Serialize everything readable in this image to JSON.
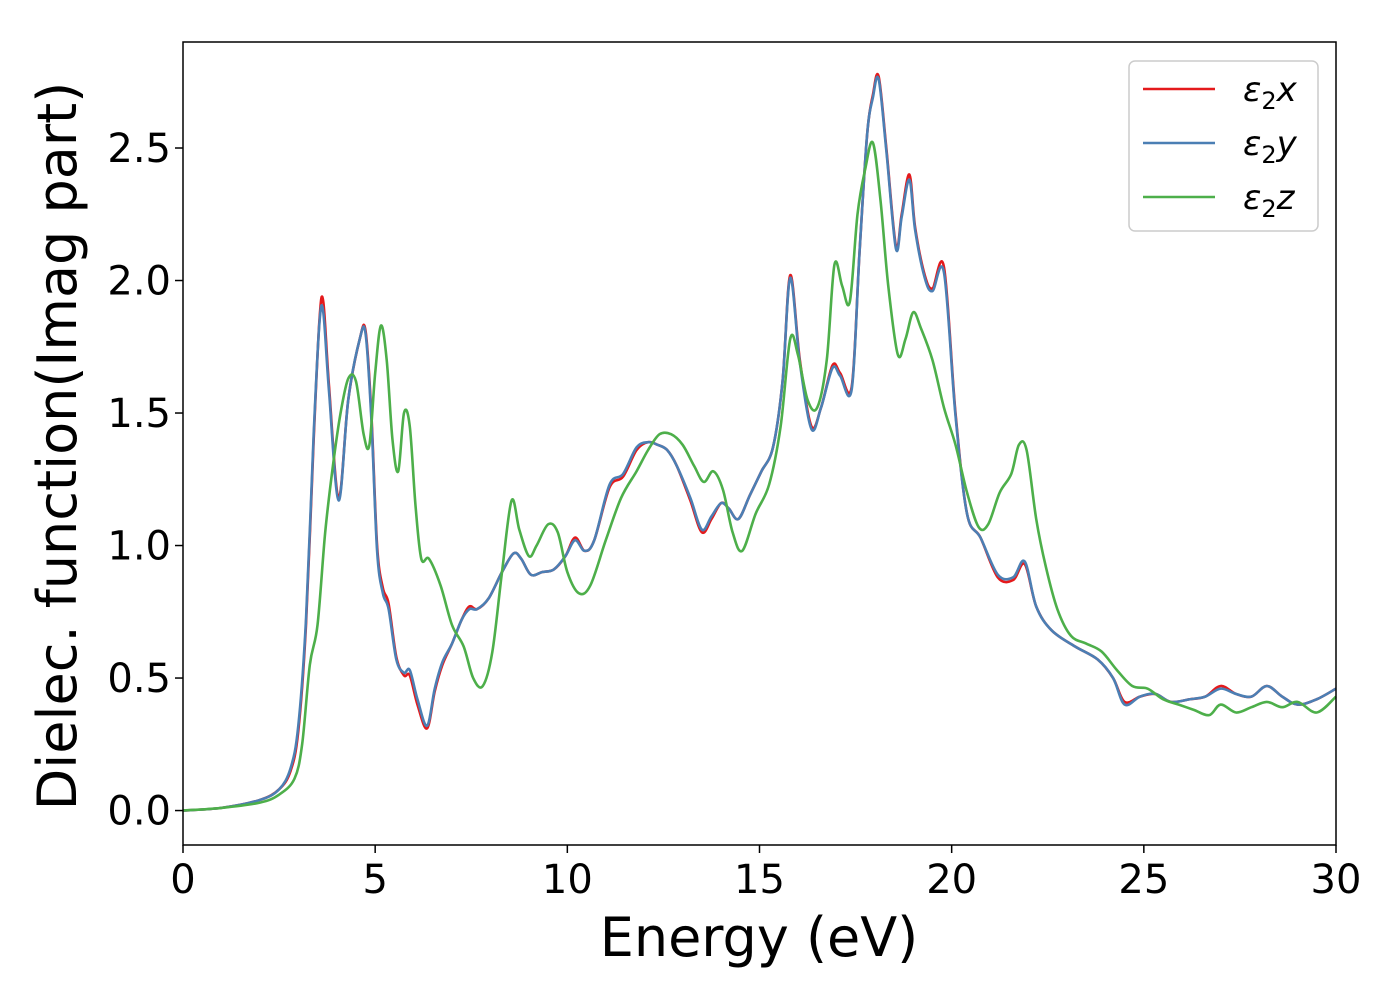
{
  "chart_data": {
    "type": "line",
    "title": "",
    "xlabel": "Energy (eV)",
    "ylabel": "Dielec. function(Imag part)",
    "xlim": [
      0,
      30
    ],
    "ylim": [
      -0.13,
      2.9
    ],
    "xticks": [
      0,
      5,
      10,
      15,
      20,
      25,
      30
    ],
    "xtick_labels": [
      "0",
      "5",
      "10",
      "15",
      "20",
      "25",
      "30"
    ],
    "yticks": [
      0.0,
      0.5,
      1.0,
      1.5,
      2.0,
      2.5
    ],
    "ytick_labels": [
      "0.0",
      "0.5",
      "1.0",
      "1.5",
      "2.0",
      "2.5"
    ],
    "grid": false,
    "legend_position": "top-right",
    "series": [
      {
        "name": "ε2x",
        "legend_sub": "2",
        "legend_base": "ε",
        "legend_suffix": "x",
        "color": "#e41a1c",
        "x": [
          0,
          1,
          2,
          2.5,
          2.8,
          3.0,
          3.2,
          3.4,
          3.55,
          3.65,
          3.8,
          4.05,
          4.3,
          4.6,
          4.75,
          4.9,
          5.05,
          5.2,
          5.35,
          5.55,
          5.75,
          5.9,
          6.1,
          6.35,
          6.55,
          6.75,
          7.0,
          7.25,
          7.45,
          7.65,
          7.95,
          8.3,
          8.6,
          8.8,
          9.05,
          9.35,
          9.65,
          9.95,
          10.2,
          10.45,
          10.7,
          11.1,
          11.45,
          11.8,
          12.1,
          12.35,
          12.6,
          12.85,
          13.2,
          13.5,
          13.75,
          14.0,
          14.2,
          14.45,
          14.75,
          15.05,
          15.35,
          15.6,
          15.8,
          16.05,
          16.35,
          16.6,
          16.9,
          17.1,
          17.4,
          17.6,
          17.8,
          17.95,
          18.1,
          18.3,
          18.55,
          18.7,
          18.9,
          19.05,
          19.3,
          19.5,
          19.8,
          20.1,
          20.4,
          20.75,
          21.2,
          21.6,
          21.9,
          22.2,
          22.6,
          23.2,
          23.8,
          24.2,
          24.5,
          24.9,
          25.3,
          25.7,
          26.2,
          26.6,
          27.0,
          27.4,
          27.8,
          28.2,
          28.6,
          29.0,
          29.5,
          30.0
        ],
        "values": [
          0.0,
          0.01,
          0.04,
          0.08,
          0.15,
          0.3,
          0.7,
          1.4,
          1.85,
          1.92,
          1.6,
          1.18,
          1.55,
          1.78,
          1.81,
          1.5,
          1.0,
          0.84,
          0.78,
          0.58,
          0.51,
          0.51,
          0.4,
          0.31,
          0.45,
          0.55,
          0.63,
          0.72,
          0.77,
          0.76,
          0.8,
          0.9,
          0.97,
          0.95,
          0.89,
          0.9,
          0.91,
          0.96,
          1.03,
          0.98,
          1.02,
          1.22,
          1.26,
          1.36,
          1.39,
          1.38,
          1.36,
          1.3,
          1.17,
          1.05,
          1.1,
          1.16,
          1.14,
          1.1,
          1.19,
          1.28,
          1.37,
          1.62,
          2.02,
          1.7,
          1.45,
          1.52,
          1.68,
          1.65,
          1.6,
          2.1,
          2.55,
          2.7,
          2.77,
          2.5,
          2.13,
          2.25,
          2.4,
          2.2,
          2.02,
          1.97,
          2.05,
          1.5,
          1.12,
          1.03,
          0.88,
          0.87,
          0.93,
          0.77,
          0.68,
          0.62,
          0.57,
          0.5,
          0.41,
          0.43,
          0.44,
          0.41,
          0.42,
          0.43,
          0.47,
          0.44,
          0.43,
          0.47,
          0.43,
          0.4,
          0.42,
          0.46
        ]
      },
      {
        "name": "ε2y",
        "legend_sub": "2",
        "legend_base": "ε",
        "legend_suffix": "y",
        "color": "#4b7fb4",
        "x": [
          0,
          1,
          2,
          2.5,
          2.8,
          3.0,
          3.2,
          3.4,
          3.55,
          3.65,
          3.8,
          4.05,
          4.3,
          4.6,
          4.75,
          4.9,
          5.05,
          5.2,
          5.35,
          5.55,
          5.75,
          5.9,
          6.1,
          6.35,
          6.55,
          6.75,
          7.0,
          7.25,
          7.45,
          7.65,
          7.95,
          8.3,
          8.6,
          8.8,
          9.05,
          9.35,
          9.65,
          9.95,
          10.2,
          10.45,
          10.7,
          11.1,
          11.45,
          11.8,
          12.1,
          12.35,
          12.6,
          12.85,
          13.2,
          13.5,
          13.75,
          14.0,
          14.2,
          14.45,
          14.75,
          15.05,
          15.35,
          15.6,
          15.8,
          16.05,
          16.35,
          16.6,
          16.9,
          17.1,
          17.4,
          17.6,
          17.8,
          17.95,
          18.1,
          18.3,
          18.55,
          18.7,
          18.9,
          19.05,
          19.3,
          19.5,
          19.8,
          20.1,
          20.4,
          20.75,
          21.2,
          21.6,
          21.9,
          22.2,
          22.6,
          23.2,
          23.8,
          24.2,
          24.5,
          24.9,
          25.3,
          25.7,
          26.2,
          26.6,
          27.0,
          27.4,
          27.8,
          28.2,
          28.6,
          29.0,
          29.5,
          30.0
        ],
        "values": [
          0.0,
          0.01,
          0.04,
          0.08,
          0.16,
          0.32,
          0.72,
          1.42,
          1.84,
          1.88,
          1.58,
          1.17,
          1.55,
          1.78,
          1.8,
          1.48,
          0.98,
          0.82,
          0.76,
          0.57,
          0.52,
          0.53,
          0.42,
          0.32,
          0.46,
          0.56,
          0.63,
          0.72,
          0.76,
          0.76,
          0.8,
          0.9,
          0.97,
          0.95,
          0.89,
          0.9,
          0.91,
          0.96,
          1.02,
          0.98,
          1.02,
          1.23,
          1.27,
          1.37,
          1.39,
          1.38,
          1.36,
          1.3,
          1.18,
          1.06,
          1.11,
          1.16,
          1.14,
          1.1,
          1.19,
          1.28,
          1.37,
          1.62,
          2.01,
          1.69,
          1.44,
          1.52,
          1.67,
          1.64,
          1.59,
          2.1,
          2.55,
          2.69,
          2.76,
          2.49,
          2.12,
          2.24,
          2.38,
          2.19,
          2.01,
          1.96,
          2.03,
          1.49,
          1.12,
          1.03,
          0.89,
          0.88,
          0.94,
          0.77,
          0.68,
          0.62,
          0.57,
          0.5,
          0.4,
          0.43,
          0.44,
          0.41,
          0.42,
          0.43,
          0.46,
          0.44,
          0.43,
          0.47,
          0.43,
          0.4,
          0.42,
          0.46
        ]
      },
      {
        "name": "ε2z",
        "legend_sub": "2",
        "legend_base": "ε",
        "legend_suffix": "z",
        "color": "#4daf4a",
        "x": [
          0,
          1,
          2,
          2.5,
          2.9,
          3.1,
          3.3,
          3.5,
          3.7,
          3.9,
          4.1,
          4.3,
          4.5,
          4.7,
          4.85,
          5.0,
          5.15,
          5.3,
          5.45,
          5.6,
          5.75,
          5.9,
          6.05,
          6.2,
          6.4,
          6.7,
          7.0,
          7.3,
          7.55,
          7.8,
          8.05,
          8.3,
          8.55,
          8.75,
          9.0,
          9.2,
          9.5,
          9.75,
          10.0,
          10.3,
          10.6,
          11.0,
          11.4,
          11.8,
          12.1,
          12.4,
          12.7,
          13.0,
          13.3,
          13.55,
          13.8,
          14.05,
          14.3,
          14.55,
          14.9,
          15.25,
          15.55,
          15.8,
          16.0,
          16.25,
          16.5,
          16.75,
          16.95,
          17.15,
          17.35,
          17.55,
          17.75,
          17.95,
          18.15,
          18.35,
          18.6,
          18.8,
          19.0,
          19.2,
          19.5,
          19.8,
          20.1,
          20.4,
          20.7,
          20.95,
          21.25,
          21.55,
          21.75,
          21.95,
          22.2,
          22.45,
          22.75,
          23.1,
          23.5,
          23.9,
          24.3,
          24.7,
          25.1,
          25.5,
          25.9,
          26.3,
          26.7,
          27.0,
          27.4,
          27.8,
          28.2,
          28.6,
          29.0,
          29.5,
          30.0
        ],
        "values": [
          0.0,
          0.01,
          0.03,
          0.06,
          0.12,
          0.25,
          0.55,
          0.7,
          1.05,
          1.3,
          1.5,
          1.63,
          1.62,
          1.42,
          1.38,
          1.65,
          1.83,
          1.7,
          1.4,
          1.28,
          1.5,
          1.45,
          1.15,
          0.95,
          0.95,
          0.85,
          0.7,
          0.62,
          0.5,
          0.47,
          0.6,
          0.9,
          1.17,
          1.06,
          0.96,
          1.0,
          1.08,
          1.05,
          0.9,
          0.82,
          0.85,
          1.02,
          1.18,
          1.28,
          1.36,
          1.42,
          1.42,
          1.38,
          1.3,
          1.24,
          1.28,
          1.21,
          1.05,
          0.98,
          1.12,
          1.23,
          1.45,
          1.78,
          1.72,
          1.55,
          1.52,
          1.7,
          2.06,
          1.98,
          1.92,
          2.25,
          2.42,
          2.52,
          2.3,
          1.98,
          1.72,
          1.78,
          1.88,
          1.82,
          1.7,
          1.52,
          1.38,
          1.2,
          1.07,
          1.08,
          1.2,
          1.27,
          1.38,
          1.36,
          1.1,
          0.92,
          0.76,
          0.66,
          0.63,
          0.6,
          0.53,
          0.47,
          0.46,
          0.42,
          0.4,
          0.38,
          0.36,
          0.4,
          0.37,
          0.39,
          0.41,
          0.39,
          0.41,
          0.37,
          0.43
        ]
      }
    ]
  }
}
